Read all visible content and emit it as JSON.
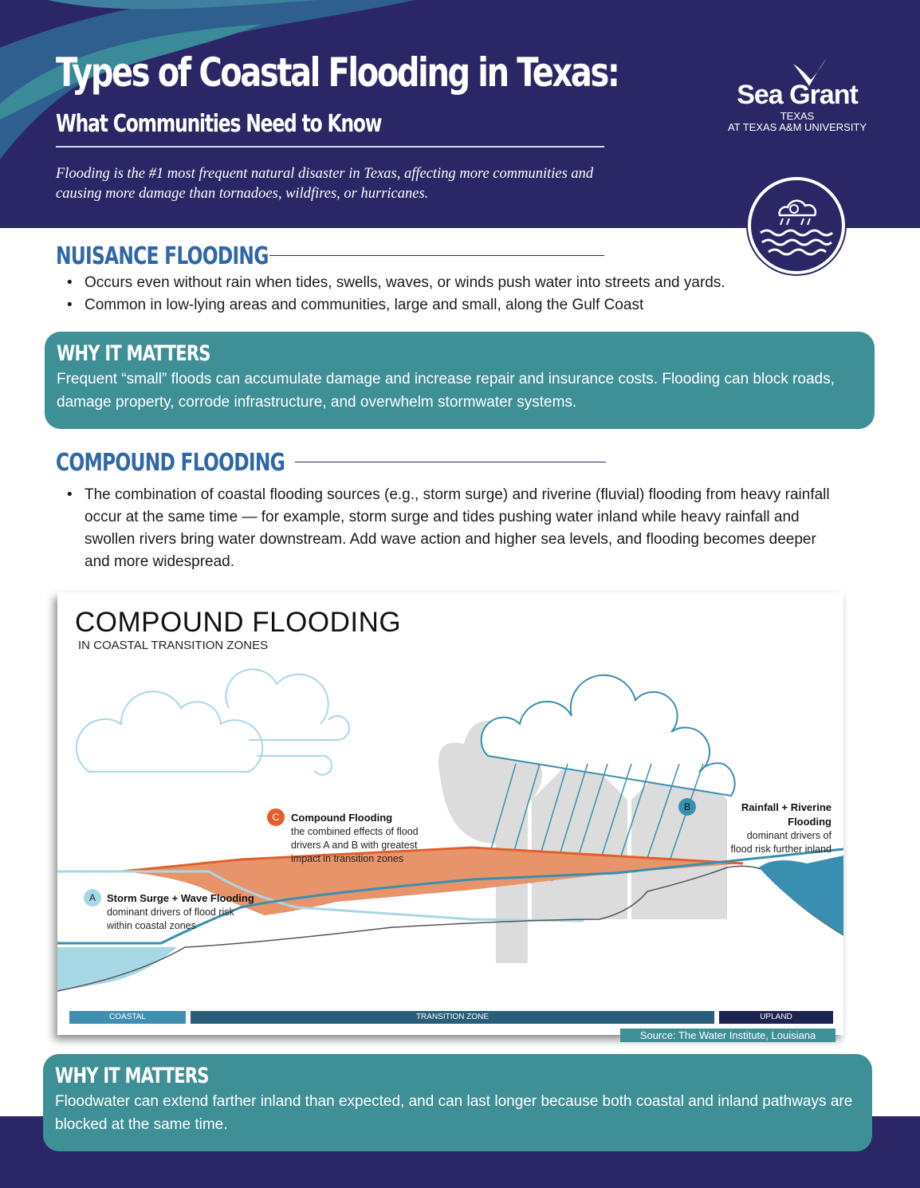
{
  "header": {
    "title": "Types of Coastal Flooding in Texas:",
    "subtitle": "What Communities Need to Know",
    "intro": "Flooding is the #1 most frequent natural disaster in Texas, affecting more communities and causing more damage than tornadoes, wildfires, or hurricanes.",
    "logo": {
      "name": "Sea Grant",
      "state": "TEXAS",
      "affiliation": "AT TEXAS A&M UNIVERSITY"
    },
    "badge_icon": "storm-cloud-waves-icon"
  },
  "nuisance": {
    "heading": "NUISANCE FLOODING",
    "bullets": [
      "Occurs even without rain when tides, swells, waves, or winds push water into streets and yards.",
      "Common in low-lying areas and communities, large and small, along the Gulf Coast"
    ],
    "why_heading": "WHY IT MATTERS",
    "why_text": "Frequent “small” floods can accumulate damage and increase repair and insurance costs. Flooding can block roads, damage property, corrode infrastructure, and overwhelm stormwater systems."
  },
  "compound": {
    "heading": "COMPOUND FLOODING",
    "bullets": [
      "The combination of coastal flooding sources (e.g., storm surge) and riverine (fluvial) flooding from heavy rainfall occur at the same time — for example, storm surge and tides pushing water inland while heavy rainfall and swollen rivers bring water downstream. Add wave action and higher sea levels, and flooding becomes deeper and more widespread."
    ],
    "why_heading": "WHY IT MATTERS",
    "why_text": "Floodwater can extend farther inland than expected, and can last longer because both coastal and inland pathways are blocked at the same time."
  },
  "diagram": {
    "title": "COMPOUND FLOODING",
    "subtitle": "IN COASTAL TRANSITION ZONES",
    "labels": {
      "a": {
        "letter": "A",
        "title": "Storm Surge + Wave Flooding",
        "l1": "dominant drivers of flood risk",
        "l2": "within coastal zones"
      },
      "b": {
        "letter": "B",
        "title": "Rainfall + Riverine Flooding",
        "l1": "dominant drivers of",
        "l2": "flood risk further inland"
      },
      "c": {
        "letter": "C",
        "title": "Compound Flooding",
        "l1": "the combined effects of flood",
        "l2": "drivers A and B with greatest",
        "l3": "impact in transition zones"
      }
    },
    "zones": [
      "COASTAL",
      "TRANSITION ZONE",
      "UPLAND"
    ],
    "source": "Source: The Water Institute, Louisiana",
    "colors": {
      "coastal": "#a8d8e6",
      "river": "#3a8fb0",
      "compound": "#e8946a",
      "compound_edge": "#e0602a"
    }
  }
}
